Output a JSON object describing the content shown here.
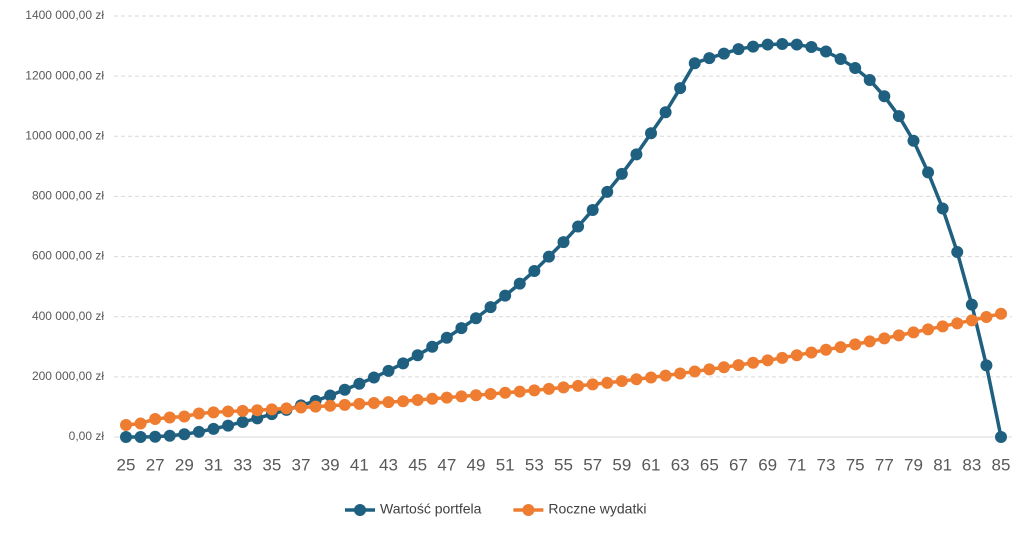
{
  "chart_data": {
    "type": "line",
    "x": [
      25,
      26,
      27,
      28,
      29,
      30,
      31,
      32,
      33,
      34,
      35,
      36,
      37,
      38,
      39,
      40,
      41,
      42,
      43,
      44,
      45,
      46,
      47,
      48,
      49,
      50,
      51,
      52,
      53,
      54,
      55,
      56,
      57,
      58,
      59,
      60,
      61,
      62,
      63,
      64,
      65,
      66,
      67,
      68,
      69,
      70,
      71,
      72,
      73,
      74,
      75,
      76,
      77,
      78,
      79,
      80,
      81,
      82,
      83,
      84,
      85
    ],
    "xlim": [
      25,
      85
    ],
    "xticks": [
      25,
      27,
      29,
      31,
      33,
      35,
      37,
      39,
      41,
      43,
      45,
      47,
      49,
      51,
      53,
      55,
      57,
      59,
      61,
      63,
      65,
      67,
      69,
      71,
      73,
      75,
      77,
      79,
      81,
      83,
      85
    ],
    "ylim": [
      0,
      1400000
    ],
    "yticks": [
      {
        "value": 0,
        "label": "0,00 zł"
      },
      {
        "value": 200000,
        "label": "200 000,00 zł"
      },
      {
        "value": 400000,
        "label": "400 000,00 zł"
      },
      {
        "value": 600000,
        "label": "600 000,00 zł"
      },
      {
        "value": 800000,
        "label": "800 000,00 zł"
      },
      {
        "value": 1000000,
        "label": "1000 000,00 zł"
      },
      {
        "value": 1200000,
        "label": "1200 000,00 zł"
      },
      {
        "value": 1400000,
        "label": "1400 000,00 zł"
      }
    ],
    "grid": true,
    "legend": "bottom",
    "series": [
      {
        "name": "Wartość portfela",
        "color": "#1f6080",
        "values": [
          0,
          0,
          1000,
          4000,
          9000,
          17000,
          27000,
          38000,
          50000,
          62000,
          76000,
          90000,
          105000,
          120000,
          138000,
          157000,
          177000,
          198000,
          220000,
          245000,
          272000,
          300000,
          330000,
          362000,
          395000,
          432000,
          470000,
          510000,
          552000,
          600000,
          648000,
          700000,
          755000,
          815000,
          875000,
          940000,
          1010000,
          1080000,
          1160000,
          1243000,
          1260000,
          1275000,
          1290000,
          1298000,
          1305000,
          1307000,
          1305000,
          1297000,
          1282000,
          1257000,
          1227000,
          1187000,
          1133000,
          1067000,
          985000,
          880000,
          760000,
          615000,
          440000,
          238000,
          0
        ]
      },
      {
        "name": "Roczne wydatki",
        "color": "#ee7d31",
        "values": [
          40000,
          45000,
          60000,
          65000,
          68000,
          78000,
          82000,
          85000,
          87000,
          89000,
          92000,
          95000,
          98000,
          101000,
          104000,
          107000,
          110000,
          113000,
          116000,
          119000,
          123000,
          127000,
          131000,
          135000,
          139000,
          143000,
          147000,
          151000,
          155000,
          160000,
          165000,
          170000,
          175000,
          180000,
          186000,
          192000,
          198000,
          204000,
          211000,
          218000,
          225000,
          232000,
          239000,
          247000,
          255000,
          263000,
          272000,
          281000,
          290000,
          299000,
          308000,
          318000,
          328000,
          338000,
          348000,
          358000,
          368000,
          378000,
          388000,
          399000,
          410000
        ]
      }
    ]
  }
}
